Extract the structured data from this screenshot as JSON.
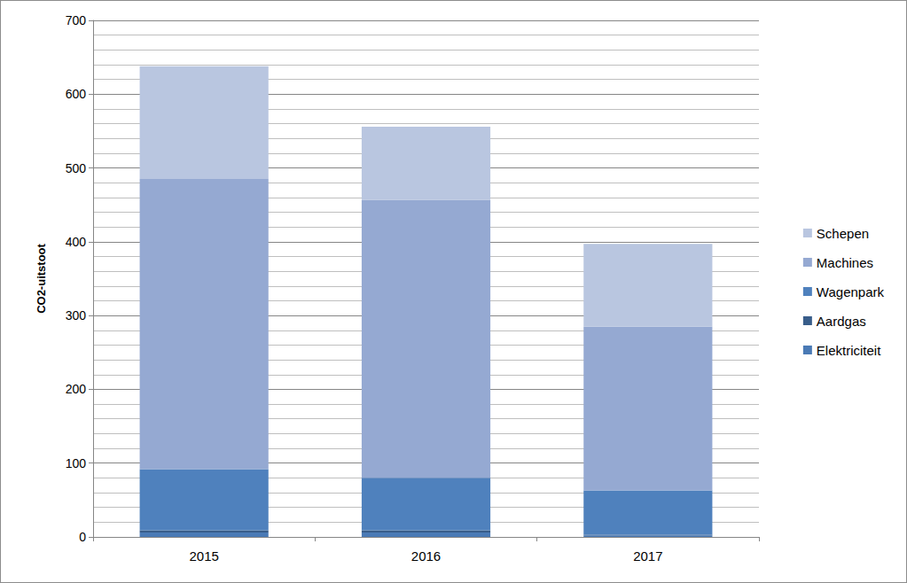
{
  "chart_data": {
    "type": "bar",
    "stacked": true,
    "y_label": "CO2-uitstoot",
    "categories": [
      "2015",
      "2016",
      "2017"
    ],
    "series": [
      {
        "name": "Elektriciteit",
        "color": "#4a7ab5",
        "values": [
          6,
          6,
          2
        ]
      },
      {
        "name": "Aardgas",
        "color": "#385d8a",
        "values": [
          3,
          3,
          1
        ]
      },
      {
        "name": "Wagenpark",
        "color": "#4f81bd",
        "values": [
          83,
          71,
          60
        ]
      },
      {
        "name": "Machines",
        "color": "#95a9d2",
        "values": [
          393,
          377,
          222
        ]
      },
      {
        "name": "Schepen",
        "color": "#b9c6e0",
        "values": [
          153,
          99,
          112
        ]
      }
    ],
    "ylim": [
      0,
      700
    ],
    "yticks": [
      0,
      100,
      200,
      300,
      400,
      500,
      600,
      700
    ],
    "grid": true,
    "legend": "right"
  }
}
